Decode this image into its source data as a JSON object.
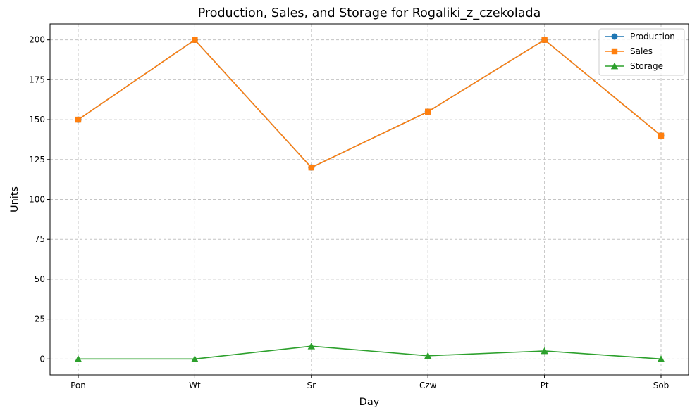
{
  "chart_data": {
    "type": "line",
    "title": "Production, Sales, and Storage for Rogaliki_z_czekolada",
    "xlabel": "Day",
    "ylabel": "Units",
    "categories": [
      "Pon",
      "Wt",
      "Sr",
      "Czw",
      "Pt",
      "Sob"
    ],
    "ylim": [
      -10,
      210
    ],
    "yticks": [
      0,
      25,
      50,
      75,
      100,
      125,
      150,
      175,
      200
    ],
    "grid": true,
    "legend_position": "top-right",
    "series": [
      {
        "name": "Production",
        "color": "#1f77b4",
        "marker": "circle",
        "values": [
          150,
          200,
          120,
          155,
          200,
          140
        ]
      },
      {
        "name": "Sales",
        "color": "#ff7f0e",
        "marker": "square",
        "values": [
          150,
          200,
          120,
          155,
          200,
          140
        ]
      },
      {
        "name": "Storage",
        "color": "#2ca02c",
        "marker": "triangle",
        "values": [
          0,
          0,
          8,
          2,
          5,
          0
        ]
      }
    ]
  }
}
